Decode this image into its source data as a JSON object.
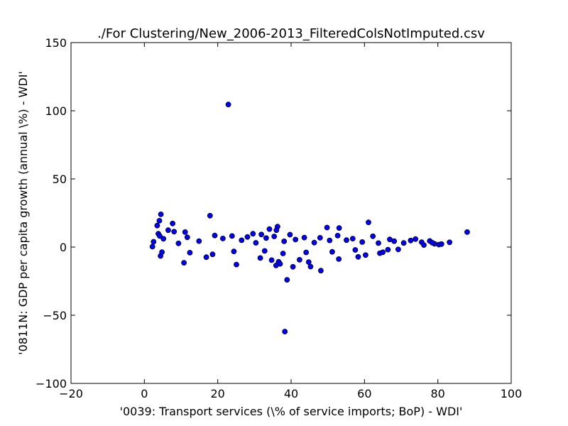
{
  "chart_data": {
    "type": "scatter",
    "title": "./For Clustering/New_2006-2013_FilteredColsNotImputed.csv",
    "xlabel": "'0039: Transport services  (\\% of service imports; BoP) - WDI'",
    "ylabel": "'0811N: GDP per capita growth  (annual \\%) - WDI'",
    "xlim": [
      -20,
      100
    ],
    "ylim": [
      -100,
      150
    ],
    "xticks": [
      -20,
      0,
      20,
      40,
      60,
      80,
      100
    ],
    "yticks": [
      -100,
      -50,
      0,
      50,
      100,
      150
    ],
    "grid": false,
    "marker_color": "#0000ff",
    "marker_edge": "#000000",
    "series": [
      {
        "x": [
          22.9,
          38.3,
          38.9,
          48.1,
          45.3,
          35.9,
          40.5,
          4.5,
          17.9,
          3.5,
          4.1,
          7.7,
          6.5,
          8.1,
          3.8,
          4.2,
          11.1,
          10.8,
          49.8,
          61.1,
          53.1,
          88.0,
          29.6,
          36.3,
          34.1,
          36.0,
          2.2,
          4.4,
          4.8,
          16.9,
          25.1,
          36.6,
          37.0,
          31.6,
          34.7,
          42.3,
          44.8,
          53.0,
          58.3,
          60.3,
          64.2,
          65.0,
          69.2,
          72.6,
          75.6,
          79.1,
          83.2,
          80.3,
          77.8,
          2.5,
          5.2,
          9.3,
          11.7,
          14.9,
          19.2,
          21.4,
          23.9,
          26.5,
          28.1,
          30.4,
          31.9,
          33.2,
          35.4,
          38.1,
          39.7,
          41.2,
          43.6,
          46.3,
          47.9,
          50.5,
          52.7,
          55.1,
          56.8,
          59.4,
          62.3,
          63.8,
          66.9,
          68.1,
          70.7,
          73.9,
          76.2,
          78.5,
          81.0,
          12.4,
          18.6,
          24.4,
          32.8,
          37.8,
          44.1,
          51.2,
          57.5,
          66.4
        ],
        "y": [
          104.6,
          -62.0,
          -24.0,
          -17.3,
          -14.3,
          -13.5,
          -14.5,
          24.0,
          23.0,
          15.8,
          19.3,
          17.3,
          12.4,
          11.3,
          9.8,
          8.1,
          11.0,
          -11.5,
          14.3,
          18.1,
          14.0,
          11.0,
          9.8,
          15.0,
          13.2,
          12.4,
          0.3,
          -6.5,
          -3.7,
          -7.4,
          -12.8,
          -10.8,
          -12.3,
          -8.0,
          -9.6,
          -9.3,
          -11.0,
          -8.8,
          -7.2,
          -5.9,
          -4.5,
          -3.8,
          -1.7,
          4.8,
          3.6,
          2.4,
          3.5,
          1.8,
          4.5,
          3.9,
          6.1,
          2.7,
          7.2,
          4.4,
          8.5,
          6.3,
          8.1,
          5.0,
          7.4,
          3.1,
          9.2,
          6.6,
          7.8,
          4.2,
          9.1,
          5.5,
          7.0,
          3.3,
          6.8,
          4.9,
          8.4,
          5.1,
          6.2,
          3.7,
          7.9,
          2.9,
          5.6,
          4.3,
          3.0,
          5.9,
          1.5,
          3.2,
          2.2,
          -4.1,
          -5.3,
          -3.2,
          -2.8,
          -4.7,
          -3.9,
          -3.5,
          -2.1,
          -1.9
        ]
      }
    ]
  }
}
